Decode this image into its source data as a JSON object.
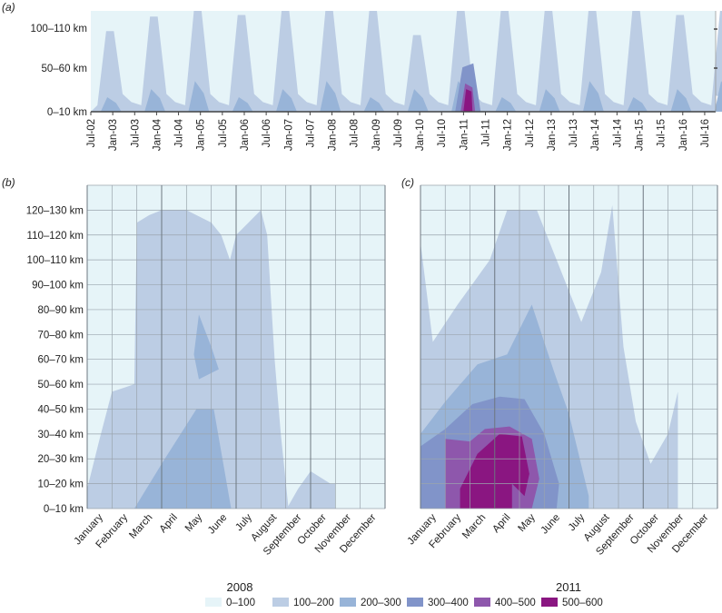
{
  "bands": [
    {
      "label": "0–100",
      "color": "#e6f4f8"
    },
    {
      "label": "100–200",
      "color": "#bccde4"
    },
    {
      "label": "200–300",
      "color": "#98b4d8"
    },
    {
      "label": "300–400",
      "color": "#8194c9"
    },
    {
      "label": "400–500",
      "color": "#8e57ac"
    },
    {
      "label": "500–600",
      "color": "#8a1681"
    }
  ],
  "chart_data": [
    {
      "type": "heatmap",
      "panel": "(a)",
      "y_ticks": [
        "0–10 km",
        "50–60 km",
        "100–110 km"
      ],
      "x_ticks": [
        "Jul-02",
        "Jan-03",
        "Jul-03",
        "Jan-04",
        "Jul-04",
        "Jan-05",
        "Jul-05",
        "Jan-06",
        "Jul-06",
        "Jan-07",
        "Jul-07",
        "Jan-08",
        "Jul-08",
        "Jan-09",
        "Jul-09",
        "Jan-10",
        "Jul-10",
        "Jan-11",
        "Jul-11",
        "Jan-12",
        "Jul-12",
        "Jan-13",
        "Jul-13",
        "Jan-14",
        "Jul-14",
        "Jan-15",
        "Jul-15",
        "Jan-16",
        "Jul-16"
      ],
      "seasonal_peak_km": [
        100,
        118,
        125,
        120,
        125,
        125,
        125,
        95,
        125,
        125,
        125,
        125,
        125,
        120,
        125
      ],
      "peak_band_2011": "500–600"
    },
    {
      "type": "heatmap",
      "panel": "(b)",
      "year": "2008",
      "x_ticks": [
        "January",
        "February",
        "March",
        "April",
        "May",
        "June",
        "July",
        "August",
        "September",
        "October",
        "November",
        "December"
      ],
      "y_ticks": [
        "0–10 km",
        "10–20 km",
        "20–30 km",
        "30–40 km",
        "40–50 km",
        "50–60 km",
        "60–70 km",
        "70–80 km",
        "80–90 km",
        "90–100 km",
        "100–110 km",
        "110–120 km",
        "120–130 km"
      ],
      "outer_100_200": [
        [
          0,
          8
        ],
        [
          0.5,
          28
        ],
        [
          1,
          47
        ],
        [
          1.9,
          50
        ],
        [
          2,
          115
        ],
        [
          2.5,
          118
        ],
        [
          3,
          120
        ],
        [
          4,
          120
        ],
        [
          5,
          115
        ],
        [
          5.4,
          110
        ],
        [
          5.75,
          100
        ],
        [
          6,
          110
        ],
        [
          7,
          120
        ],
        [
          7.25,
          110
        ],
        [
          7.55,
          60
        ],
        [
          7.8,
          30
        ],
        [
          8.1,
          1
        ],
        [
          8.5,
          8
        ],
        [
          9,
          15
        ],
        [
          9.8,
          10
        ],
        [
          10,
          10
        ]
      ],
      "band_200_300": [
        [
          1.9,
          0
        ],
        [
          3,
          18
        ],
        [
          4.4,
          40
        ],
        [
          5.1,
          40
        ],
        [
          5.8,
          0
        ]
      ],
      "band_200_300_upper": [
        [
          4.3,
          62
        ],
        [
          4.5,
          78
        ],
        [
          5.0,
          65
        ],
        [
          5.3,
          56
        ],
        [
          4.5,
          52
        ]
      ]
    },
    {
      "type": "heatmap",
      "panel": "(c)",
      "year": "2011",
      "x_ticks": [
        "January",
        "February",
        "March",
        "April",
        "May",
        "June",
        "July",
        "August",
        "September",
        "October",
        "November",
        "December"
      ],
      "y_ticks": [
        "0–10 km",
        "10–20 km",
        "20–30 km",
        "30–40 km",
        "40–50 km",
        "50–60 km",
        "60–70 km",
        "70–80 km",
        "80–90 km",
        "90–100 km",
        "100–110 km",
        "110–120 km",
        "120–130 km"
      ],
      "outer_100_200": [
        [
          0,
          107
        ],
        [
          0.5,
          67
        ],
        [
          1.5,
          82
        ],
        [
          2.8,
          100
        ],
        [
          3.5,
          120
        ],
        [
          4.7,
          120
        ],
        [
          5.5,
          100
        ],
        [
          6.5,
          75
        ],
        [
          7.3,
          95
        ],
        [
          7.75,
          122
        ],
        [
          8.2,
          65
        ],
        [
          8.7,
          35
        ],
        [
          9.3,
          18
        ],
        [
          10,
          30
        ],
        [
          10.4,
          47
        ]
      ],
      "band_200_300": [
        [
          0,
          30
        ],
        [
          1,
          43
        ],
        [
          2.3,
          58
        ],
        [
          3.5,
          62
        ],
        [
          4.5,
          82
        ],
        [
          5.4,
          55
        ],
        [
          6,
          38
        ],
        [
          6.8,
          5
        ]
      ],
      "band_300_400": [
        [
          0,
          25
        ],
        [
          1,
          32
        ],
        [
          2.1,
          42
        ],
        [
          3.2,
          45
        ],
        [
          4.2,
          44
        ],
        [
          5,
          30
        ],
        [
          5.6,
          10
        ],
        [
          5.5,
          0
        ]
      ],
      "band_400_500": [
        [
          1,
          28
        ],
        [
          2,
          27
        ],
        [
          2.6,
          32
        ],
        [
          3.6,
          33
        ],
        [
          4.5,
          28
        ],
        [
          4.8,
          12
        ],
        [
          4.5,
          0
        ],
        [
          1.6,
          0
        ]
      ],
      "band_500_600": [
        [
          1.6,
          8
        ],
        [
          2.3,
          22
        ],
        [
          3.2,
          30
        ],
        [
          4.1,
          29
        ],
        [
          4.4,
          14
        ],
        [
          4.2,
          5
        ],
        [
          3.7,
          10
        ]
      ]
    }
  ]
}
